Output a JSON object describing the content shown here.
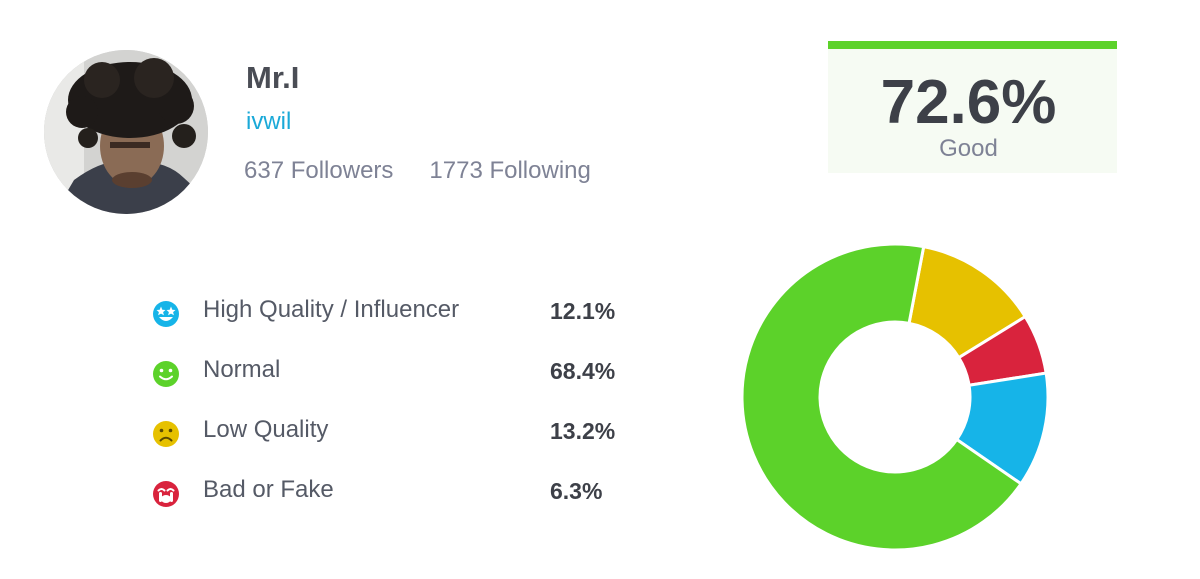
{
  "profile": {
    "name": "Mr.I",
    "handle": "ivwil",
    "followers": "637 Followers",
    "following": "1773 Following",
    "avatar": "avatar-photo"
  },
  "score": {
    "value": "72.6%",
    "label": "Good",
    "accent_color": "#5cd22a"
  },
  "chart_data": {
    "type": "pie",
    "categories": [
      "High Quality / Influencer",
      "Normal",
      "Low Quality",
      "Bad or Fake"
    ],
    "values": [
      12.1,
      68.4,
      13.2,
      6.3
    ],
    "colors": [
      "#16b4e8",
      "#5cd22a",
      "#e6c100",
      "#d9233d"
    ],
    "value_labels": [
      "12.1%",
      "68.4%",
      "13.2%",
      "6.3%"
    ],
    "icons": [
      "star-eyes-smiley-icon",
      "smiley-icon",
      "sad-face-icon",
      "crying-face-icon"
    ],
    "order_clockwise_from_top": [
      "Low Quality",
      "Bad or Fake",
      "High Quality / Influencer",
      "Normal"
    ],
    "donut": true
  }
}
